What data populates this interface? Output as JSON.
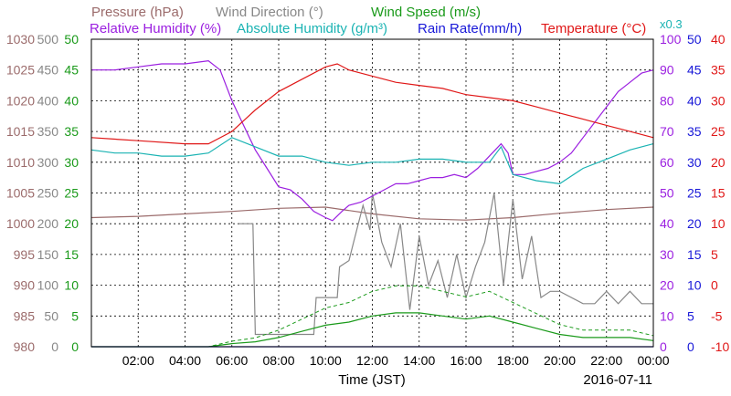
{
  "chart_data": {
    "type": "line",
    "legend_row1": [
      "Pressure (hPa)",
      "Wind Direction (°)",
      "Wind Speed (m/s)"
    ],
    "legend_row2": [
      "Relative Humidity (%)",
      "Absolute Humidity (g/m³)",
      "Rain Rate(mm/h)",
      "Temperature (°C)"
    ],
    "multiplier_note": "x0.3",
    "xlabel": "Time (JST)",
    "date": "2016-07-11",
    "x_tick_labels": [
      "02:00",
      "04:00",
      "06:00",
      "08:00",
      "10:00",
      "12:00",
      "14:00",
      "16:00",
      "18:00",
      "20:00",
      "22:00",
      "00:00"
    ],
    "xlim_hours": [
      0,
      24
    ],
    "grid": true,
    "axes": {
      "pressure": {
        "ticks": [
          "980",
          "985",
          "990",
          "995",
          "1000",
          "1005",
          "1010",
          "1015",
          "1020",
          "1025",
          "1030"
        ],
        "range": [
          980,
          1030
        ],
        "color": "#9b6b6b"
      },
      "wind_direction": {
        "ticks": [
          "0",
          "50",
          "100",
          "150",
          "200",
          "250",
          "300",
          "350",
          "400",
          "450",
          "500"
        ],
        "range": [
          0,
          500
        ],
        "color": "#888888"
      },
      "wind_speed": {
        "ticks": [
          "0",
          "5",
          "10",
          "15",
          "20",
          "25",
          "30",
          "35",
          "40",
          "45",
          "50"
        ],
        "range": [
          0,
          50
        ],
        "color": "#1a9a1a"
      },
      "humidity": {
        "ticks": [
          "0",
          "10",
          "20",
          "30",
          "40",
          "50",
          "60",
          "70",
          "80",
          "90",
          "100"
        ],
        "range": [
          0,
          100
        ],
        "color": "#9b1fe0"
      },
      "rain_rate": {
        "ticks": [
          "0",
          "5",
          "10",
          "15",
          "20",
          "25",
          "30",
          "35",
          "40",
          "45",
          "50"
        ],
        "range": [
          0,
          50
        ],
        "color": "#1818d8"
      },
      "temperature": {
        "ticks": [
          "-10",
          "-5",
          "0",
          "5",
          "10",
          "15",
          "20",
          "25",
          "30",
          "35",
          "40"
        ],
        "range": [
          -10,
          40
        ],
        "color": "#e01818"
      }
    },
    "series": [
      {
        "name": "Pressure (hPa)",
        "color": "#9b6b6b",
        "x": [
          0,
          2,
          4,
          6,
          8,
          10,
          12,
          14,
          16,
          18,
          20,
          22,
          24
        ],
        "y": [
          1001.0,
          1001.2,
          1001.6,
          1002.0,
          1002.5,
          1002.7,
          1001.6,
          1000.8,
          1000.6,
          1001.0,
          1001.7,
          1002.3,
          1002.7
        ]
      },
      {
        "name": "Wind Direction (°)",
        "color": "#888888",
        "x": [
          6.3,
          6.4,
          6.9,
          7.0,
          7.5,
          8.0,
          9.5,
          9.6,
          10.5,
          10.6,
          11.0,
          11.2,
          11.6,
          11.9,
          12.0,
          12.4,
          12.8,
          13.2,
          13.6,
          14.0,
          14.4,
          14.8,
          15.2,
          15.6,
          16.0,
          16.4,
          16.8,
          17.2,
          17.6,
          18.0,
          18.4,
          18.8,
          19.2,
          19.6,
          20.0,
          21.0,
          21.5,
          22.0,
          22.5,
          23.0,
          23.5,
          24.0
        ],
        "y": [
          200,
          200,
          200,
          20,
          20,
          20,
          20,
          80,
          80,
          130,
          140,
          170,
          230,
          190,
          250,
          170,
          130,
          200,
          60,
          180,
          100,
          140,
          80,
          150,
          80,
          130,
          170,
          250,
          100,
          240,
          110,
          180,
          80,
          90,
          90,
          70,
          70,
          90,
          70,
          90,
          70,
          70
        ]
      },
      {
        "name": "Wind Speed (m/s)",
        "color": "#1a9a1a",
        "x": [
          0,
          5,
          6,
          7,
          8,
          9,
          10,
          11,
          12,
          13,
          14,
          15,
          16,
          17,
          18,
          19,
          20,
          21,
          22,
          23,
          24
        ],
        "y": [
          0,
          0,
          0.5,
          0.8,
          1.5,
          2.5,
          3.5,
          4.0,
          5.0,
          5.5,
          5.5,
          5.0,
          4.5,
          5.0,
          4.0,
          3.0,
          2.0,
          1.5,
          1.5,
          1.5,
          1.0
        ]
      },
      {
        "name": "Relative Humidity (%)",
        "color": "#9b1fe0",
        "x": [
          0,
          1,
          2,
          3,
          4,
          5,
          5.5,
          6,
          6.5,
          7,
          7.5,
          8,
          8.5,
          9,
          9.5,
          10,
          10.3,
          10.7,
          11,
          11.5,
          12,
          12.5,
          13,
          13.5,
          14,
          14.5,
          15,
          15.5,
          16,
          16.5,
          17,
          17.5,
          17.8,
          18,
          18.5,
          19,
          19.5,
          20,
          20.5,
          21,
          21.5,
          22,
          22.5,
          23,
          23.5,
          24
        ],
        "y": [
          90,
          90,
          91,
          92,
          92,
          93,
          90,
          80,
          72,
          64,
          58,
          52,
          51,
          48,
          44,
          42,
          41,
          44,
          46,
          47,
          49,
          51,
          53,
          53,
          54,
          55,
          55,
          56,
          55,
          58,
          62,
          66,
          63,
          56,
          56,
          57,
          58,
          60,
          63,
          68,
          73,
          78,
          83,
          86,
          89,
          90
        ]
      },
      {
        "name": "Absolute Humidity (g/m³)",
        "color": "#1ab3b3",
        "x": [
          0,
          1,
          2,
          3,
          4,
          5,
          6,
          7,
          8,
          9,
          10,
          11,
          12,
          13,
          14,
          15,
          16,
          17,
          17.5,
          18,
          19,
          20,
          21,
          22,
          23,
          24
        ],
        "y": [
          64,
          63,
          63,
          62,
          62,
          63,
          68,
          65,
          62,
          62,
          60,
          59,
          60,
          60,
          61,
          61,
          60,
          60,
          65,
          56,
          54,
          53,
          58,
          61,
          64,
          66
        ]
      },
      {
        "name": "Rain Rate(mm/h)",
        "color": "#1818d8",
        "x": [
          0,
          24
        ],
        "y": [
          0,
          0
        ]
      },
      {
        "name": "Temperature (°C)",
        "color": "#e01818",
        "x": [
          0,
          2,
          4,
          5,
          6,
          7,
          8,
          9,
          10,
          10.5,
          11,
          12,
          13,
          14,
          15,
          16,
          17,
          18,
          19,
          20,
          21,
          22,
          23,
          24
        ],
        "y": [
          24,
          23.5,
          23,
          23,
          25,
          28.5,
          31.5,
          33.5,
          35.5,
          36,
          35,
          34,
          33,
          32.5,
          32,
          31,
          30.5,
          30,
          29,
          28,
          27,
          26,
          25,
          24
        ]
      }
    ]
  }
}
